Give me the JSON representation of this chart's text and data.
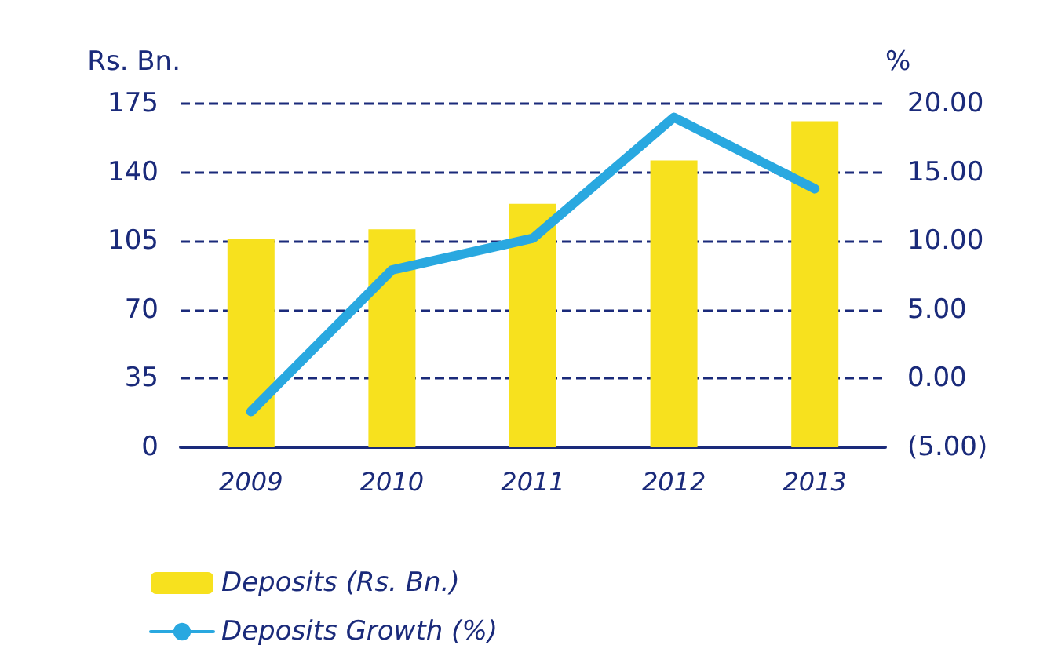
{
  "chart_data": {
    "type": "bar",
    "categories": [
      "2009",
      "2010",
      "2011",
      "2012",
      "2013"
    ],
    "series": [
      {
        "name": "Deposits (Rs. Bn.)",
        "color": "#f7e11e",
        "values": [
          106,
          111,
          124,
          146,
          166
        ]
      },
      {
        "name": "Deposits Growth (%)",
        "type": "line",
        "axis": "y2",
        "color": "#29a8e0",
        "values": [
          -2.4,
          7.9,
          10.2,
          19.0,
          13.8
        ]
      }
    ],
    "ylabel": "Rs. Bn.",
    "y2label": "%",
    "ylim": [
      0,
      175
    ],
    "yticks": [
      0,
      35,
      70,
      105,
      140,
      175
    ],
    "y2lim": [
      -5,
      20
    ],
    "y2ticks": [
      {
        "value": -5,
        "label": "(5.00)"
      },
      {
        "value": 0,
        "label": "0.00"
      },
      {
        "value": 5,
        "label": "5.00"
      },
      {
        "value": 10,
        "label": "10.00"
      },
      {
        "value": 15,
        "label": "15.00"
      },
      {
        "value": 20,
        "label": "20.00"
      }
    ],
    "grid": "y",
    "legend": "bottom left",
    "marker": "none",
    "line_style": "solid"
  }
}
